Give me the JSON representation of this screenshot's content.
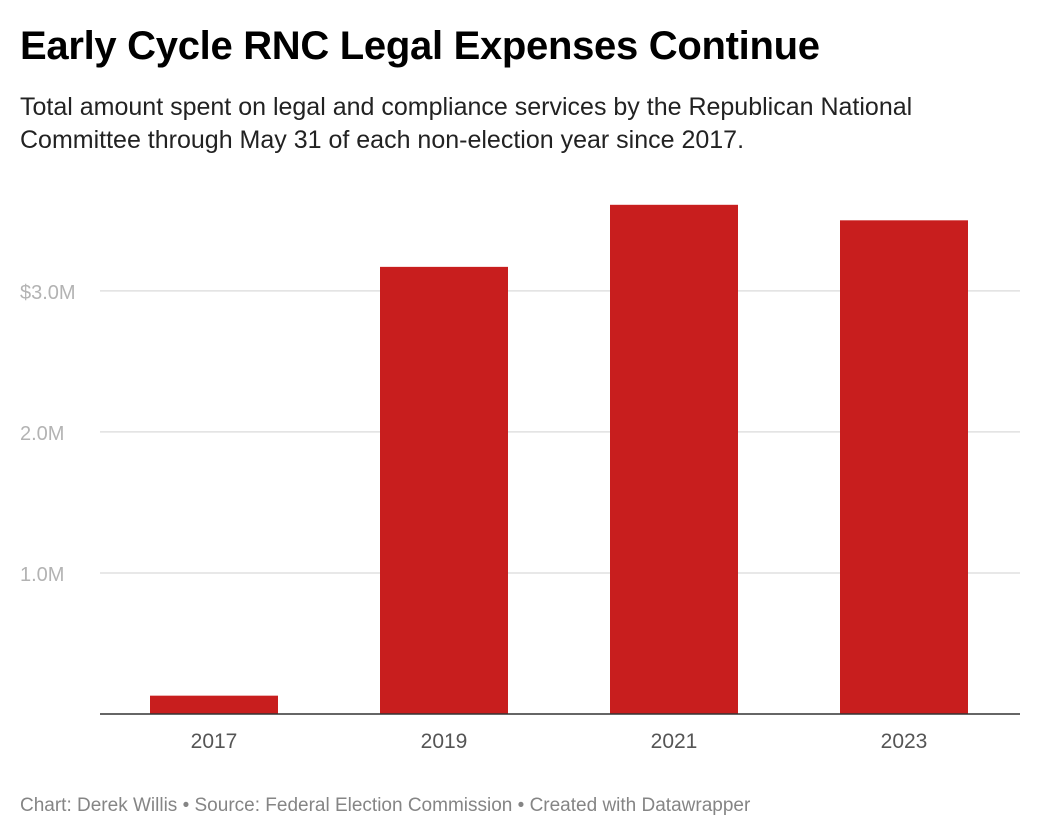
{
  "title": "Early Cycle RNC Legal Expenses Continue",
  "subtitle": "Total amount spent on legal and compliance services by the Republican National Committee through May 31 of each non-election year since 2017.",
  "footer": "Chart: Derek Willis • Source: Federal Election Commission • Created with Datawrapper",
  "colors": {
    "bar": "#c81e1e",
    "gridline": "#e0e0e0",
    "baseline": "#333333",
    "y_tick_label": "#b3b3b3",
    "x_tick_label": "#555555"
  },
  "chart_data": {
    "type": "bar",
    "categories": [
      "2017",
      "2019",
      "2021",
      "2023"
    ],
    "values": [
      130000,
      3170000,
      3610000,
      3500000
    ],
    "title": "Early Cycle RNC Legal Expenses Continue",
    "xlabel": "",
    "ylabel": "",
    "ylim": [
      0,
      3800000
    ],
    "y_ticks": [
      {
        "value": 1000000,
        "label": "1.0M"
      },
      {
        "value": 2000000,
        "label": "2.0M"
      },
      {
        "value": 3000000,
        "label": "$3.0M"
      }
    ],
    "grid": true,
    "legend": "none"
  }
}
